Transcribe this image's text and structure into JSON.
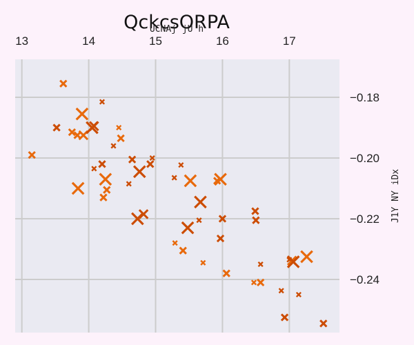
{
  "chart_data": {
    "type": "scatter",
    "title": "QckcsORPA",
    "xlabel": "UCNAj jU h",
    "ylabel": "J1Y NY iDx",
    "x_axis_position": "top",
    "y_axis_position": "right",
    "xlim": [
      12.9,
      17.75
    ],
    "ylim": [
      -0.2575,
      -0.1675
    ],
    "x_ticks": [
      13,
      14,
      15,
      16,
      17
    ],
    "x_tick_labels": [
      "13",
      "14",
      "15",
      "16",
      "17"
    ],
    "y_ticks": [
      -0.18,
      -0.2,
      -0.22,
      -0.24
    ],
    "y_tick_labels": [
      "−0.18",
      "−0.20",
      "−0.22",
      "−0.24"
    ],
    "grid": true,
    "colors": {
      "background": "#eaeaf2",
      "grid": "#cccccc",
      "marker_light": "#e8690b",
      "marker_dark": "#cc4c02",
      "page": "#fdf2fb"
    },
    "points": [
      {
        "x": 13.62,
        "y": -0.1755,
        "size": 2,
        "color": "#e8690b"
      },
      {
        "x": 14.2,
        "y": -0.1815,
        "size": 1,
        "color": "#cc4c02"
      },
      {
        "x": 13.52,
        "y": -0.19,
        "size": 2,
        "color": "#cc4c02"
      },
      {
        "x": 13.75,
        "y": -0.1915,
        "size": 2,
        "color": "#e8690b"
      },
      {
        "x": 13.83,
        "y": -0.1925,
        "size": 2,
        "color": "#e8690b"
      },
      {
        "x": 13.92,
        "y": -0.1925,
        "size": 3,
        "color": "#e8690b"
      },
      {
        "x": 13.9,
        "y": -0.1855,
        "size": 4,
        "color": "#e8690b"
      },
      {
        "x": 14.08,
        "y": -0.1895,
        "size": 3,
        "color": "#cc4c02"
      },
      {
        "x": 14.05,
        "y": -0.19,
        "size": 4,
        "color": "#cc4c02"
      },
      {
        "x": 14.45,
        "y": -0.19,
        "size": 1,
        "color": "#e8690b"
      },
      {
        "x": 14.48,
        "y": -0.1935,
        "size": 2,
        "color": "#e8690b"
      },
      {
        "x": 14.37,
        "y": -0.196,
        "size": 1,
        "color": "#cc4c02"
      },
      {
        "x": 13.15,
        "y": -0.199,
        "size": 2,
        "color": "#e8690b"
      },
      {
        "x": 14.95,
        "y": -0.2,
        "size": 1,
        "color": "#cc4c02"
      },
      {
        "x": 14.65,
        "y": -0.2005,
        "size": 2,
        "color": "#cc4c02"
      },
      {
        "x": 14.2,
        "y": -0.202,
        "size": 2,
        "color": "#cc4c02"
      },
      {
        "x": 14.92,
        "y": -0.202,
        "size": 2,
        "color": "#cc4c02"
      },
      {
        "x": 15.38,
        "y": -0.2023,
        "size": 1,
        "color": "#cc4c02"
      },
      {
        "x": 14.08,
        "y": -0.2035,
        "size": 1,
        "color": "#cc4c02"
      },
      {
        "x": 14.76,
        "y": -0.2045,
        "size": 4,
        "color": "#cc4c02"
      },
      {
        "x": 15.28,
        "y": -0.2065,
        "size": 1,
        "color": "#cc4c02"
      },
      {
        "x": 14.25,
        "y": -0.207,
        "size": 4,
        "color": "#e8690b"
      },
      {
        "x": 15.52,
        "y": -0.2075,
        "size": 4,
        "color": "#e8690b"
      },
      {
        "x": 15.92,
        "y": -0.2075,
        "size": 2,
        "color": "#e8690b"
      },
      {
        "x": 15.97,
        "y": -0.207,
        "size": 4,
        "color": "#e8690b"
      },
      {
        "x": 14.6,
        "y": -0.2085,
        "size": 1,
        "color": "#cc4c02"
      },
      {
        "x": 13.84,
        "y": -0.21,
        "size": 4,
        "color": "#e8690b"
      },
      {
        "x": 14.27,
        "y": -0.2105,
        "size": 2,
        "color": "#e8690b"
      },
      {
        "x": 14.22,
        "y": -0.213,
        "size": 2,
        "color": "#e8690b"
      },
      {
        "x": 15.67,
        "y": -0.2145,
        "size": 4,
        "color": "#cc4c02"
      },
      {
        "x": 16.49,
        "y": -0.2175,
        "size": 2,
        "color": "#cc4c02"
      },
      {
        "x": 14.82,
        "y": -0.2185,
        "size": 3,
        "color": "#cc4c02"
      },
      {
        "x": 14.73,
        "y": -0.22,
        "size": 4,
        "color": "#cc4c02"
      },
      {
        "x": 16.0,
        "y": -0.22,
        "size": 2,
        "color": "#cc4c02"
      },
      {
        "x": 16.5,
        "y": -0.2205,
        "size": 2,
        "color": "#cc4c02"
      },
      {
        "x": 15.65,
        "y": -0.2205,
        "size": 1,
        "color": "#cc4c02"
      },
      {
        "x": 15.48,
        "y": -0.223,
        "size": 4,
        "color": "#cc4c02"
      },
      {
        "x": 15.97,
        "y": -0.2265,
        "size": 2,
        "color": "#cc4c02"
      },
      {
        "x": 15.29,
        "y": -0.228,
        "size": 1,
        "color": "#e8690b"
      },
      {
        "x": 15.41,
        "y": -0.2305,
        "size": 2,
        "color": "#e8690b"
      },
      {
        "x": 17.0,
        "y": -0.2335,
        "size": 1,
        "color": "#cc4c02"
      },
      {
        "x": 17.04,
        "y": -0.2338,
        "size": 3,
        "color": "#e8690b"
      },
      {
        "x": 17.06,
        "y": -0.2342,
        "size": 4,
        "color": "#cc4c02"
      },
      {
        "x": 17.26,
        "y": -0.2325,
        "size": 4,
        "color": "#e8690b"
      },
      {
        "x": 15.71,
        "y": -0.2345,
        "size": 1,
        "color": "#e8690b"
      },
      {
        "x": 16.57,
        "y": -0.235,
        "size": 1,
        "color": "#cc4c02"
      },
      {
        "x": 16.06,
        "y": -0.238,
        "size": 2,
        "color": "#e8690b"
      },
      {
        "x": 16.47,
        "y": -0.241,
        "size": 1,
        "color": "#e8690b"
      },
      {
        "x": 16.57,
        "y": -0.241,
        "size": 2,
        "color": "#e8690b"
      },
      {
        "x": 16.88,
        "y": -0.2437,
        "size": 1,
        "color": "#cc4c02"
      },
      {
        "x": 17.14,
        "y": -0.245,
        "size": 1,
        "color": "#cc4c02"
      },
      {
        "x": 16.93,
        "y": -0.2525,
        "size": 2,
        "color": "#cc4c02"
      },
      {
        "x": 17.51,
        "y": -0.2545,
        "size": 2,
        "color": "#cc4c02"
      }
    ]
  }
}
